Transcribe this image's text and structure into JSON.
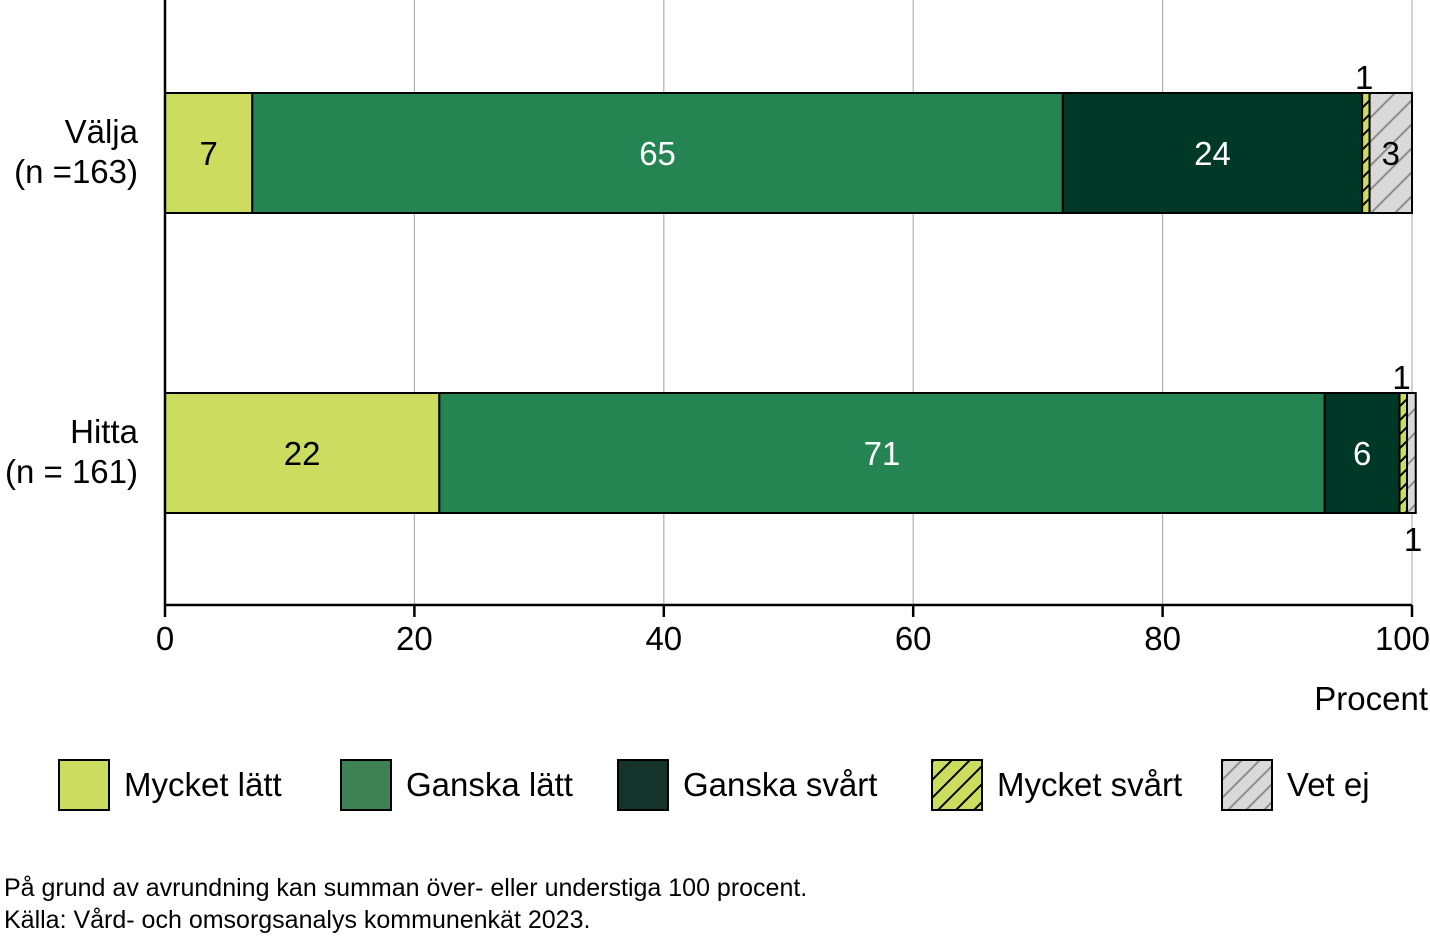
{
  "chart_data": {
    "type": "bar",
    "orientation": "horizontal",
    "stacked": true,
    "categories": [
      [
        "Välja",
        "(n =163)"
      ],
      [
        "Hitta",
        "(n = 161)"
      ]
    ],
    "series": [
      {
        "name": "Mycket lätt",
        "values": [
          7,
          22
        ],
        "labels": [
          "7",
          "22"
        ],
        "color": "#cbdc5e",
        "pattern": "none",
        "label_color": "#000000"
      },
      {
        "name": "Ganska lätt",
        "values": [
          65,
          71
        ],
        "labels": [
          "65",
          "71"
        ],
        "color": "#248552",
        "pattern": "none",
        "label_color": "#ffffff"
      },
      {
        "name": "Ganska svårt",
        "values": [
          24,
          6
        ],
        "labels": [
          "24",
          "6"
        ],
        "color": "#003827",
        "pattern": "none",
        "label_color": "#ffffff"
      },
      {
        "name": "Mycket svårt",
        "values": [
          0.6,
          0.6
        ],
        "labels": [
          "1",
          "1"
        ],
        "color": "#cbdc5e",
        "pattern": "hatch",
        "label_color": "#000000"
      },
      {
        "name": "Vet ej",
        "values": [
          3.4,
          0.7
        ],
        "labels": [
          "3",
          "1"
        ],
        "color": "#d9d9d9",
        "pattern": "hatch",
        "label_color": "#000000"
      }
    ],
    "xlim": [
      0,
      100
    ],
    "xticks": [
      0,
      20,
      40,
      60,
      80,
      100
    ],
    "xlabel": "Procent",
    "grid": true,
    "legend_position": "bottom",
    "legend_colors": {
      "Ganska lätt": "#3e8152",
      "Ganska svårt": "#14332a"
    }
  },
  "notes": [
    "På grund av avrundning kan summan över- eller understiga 100 procent.",
    "Källa: Vård- och omsorgsanalys kommunenkät 2023."
  ]
}
